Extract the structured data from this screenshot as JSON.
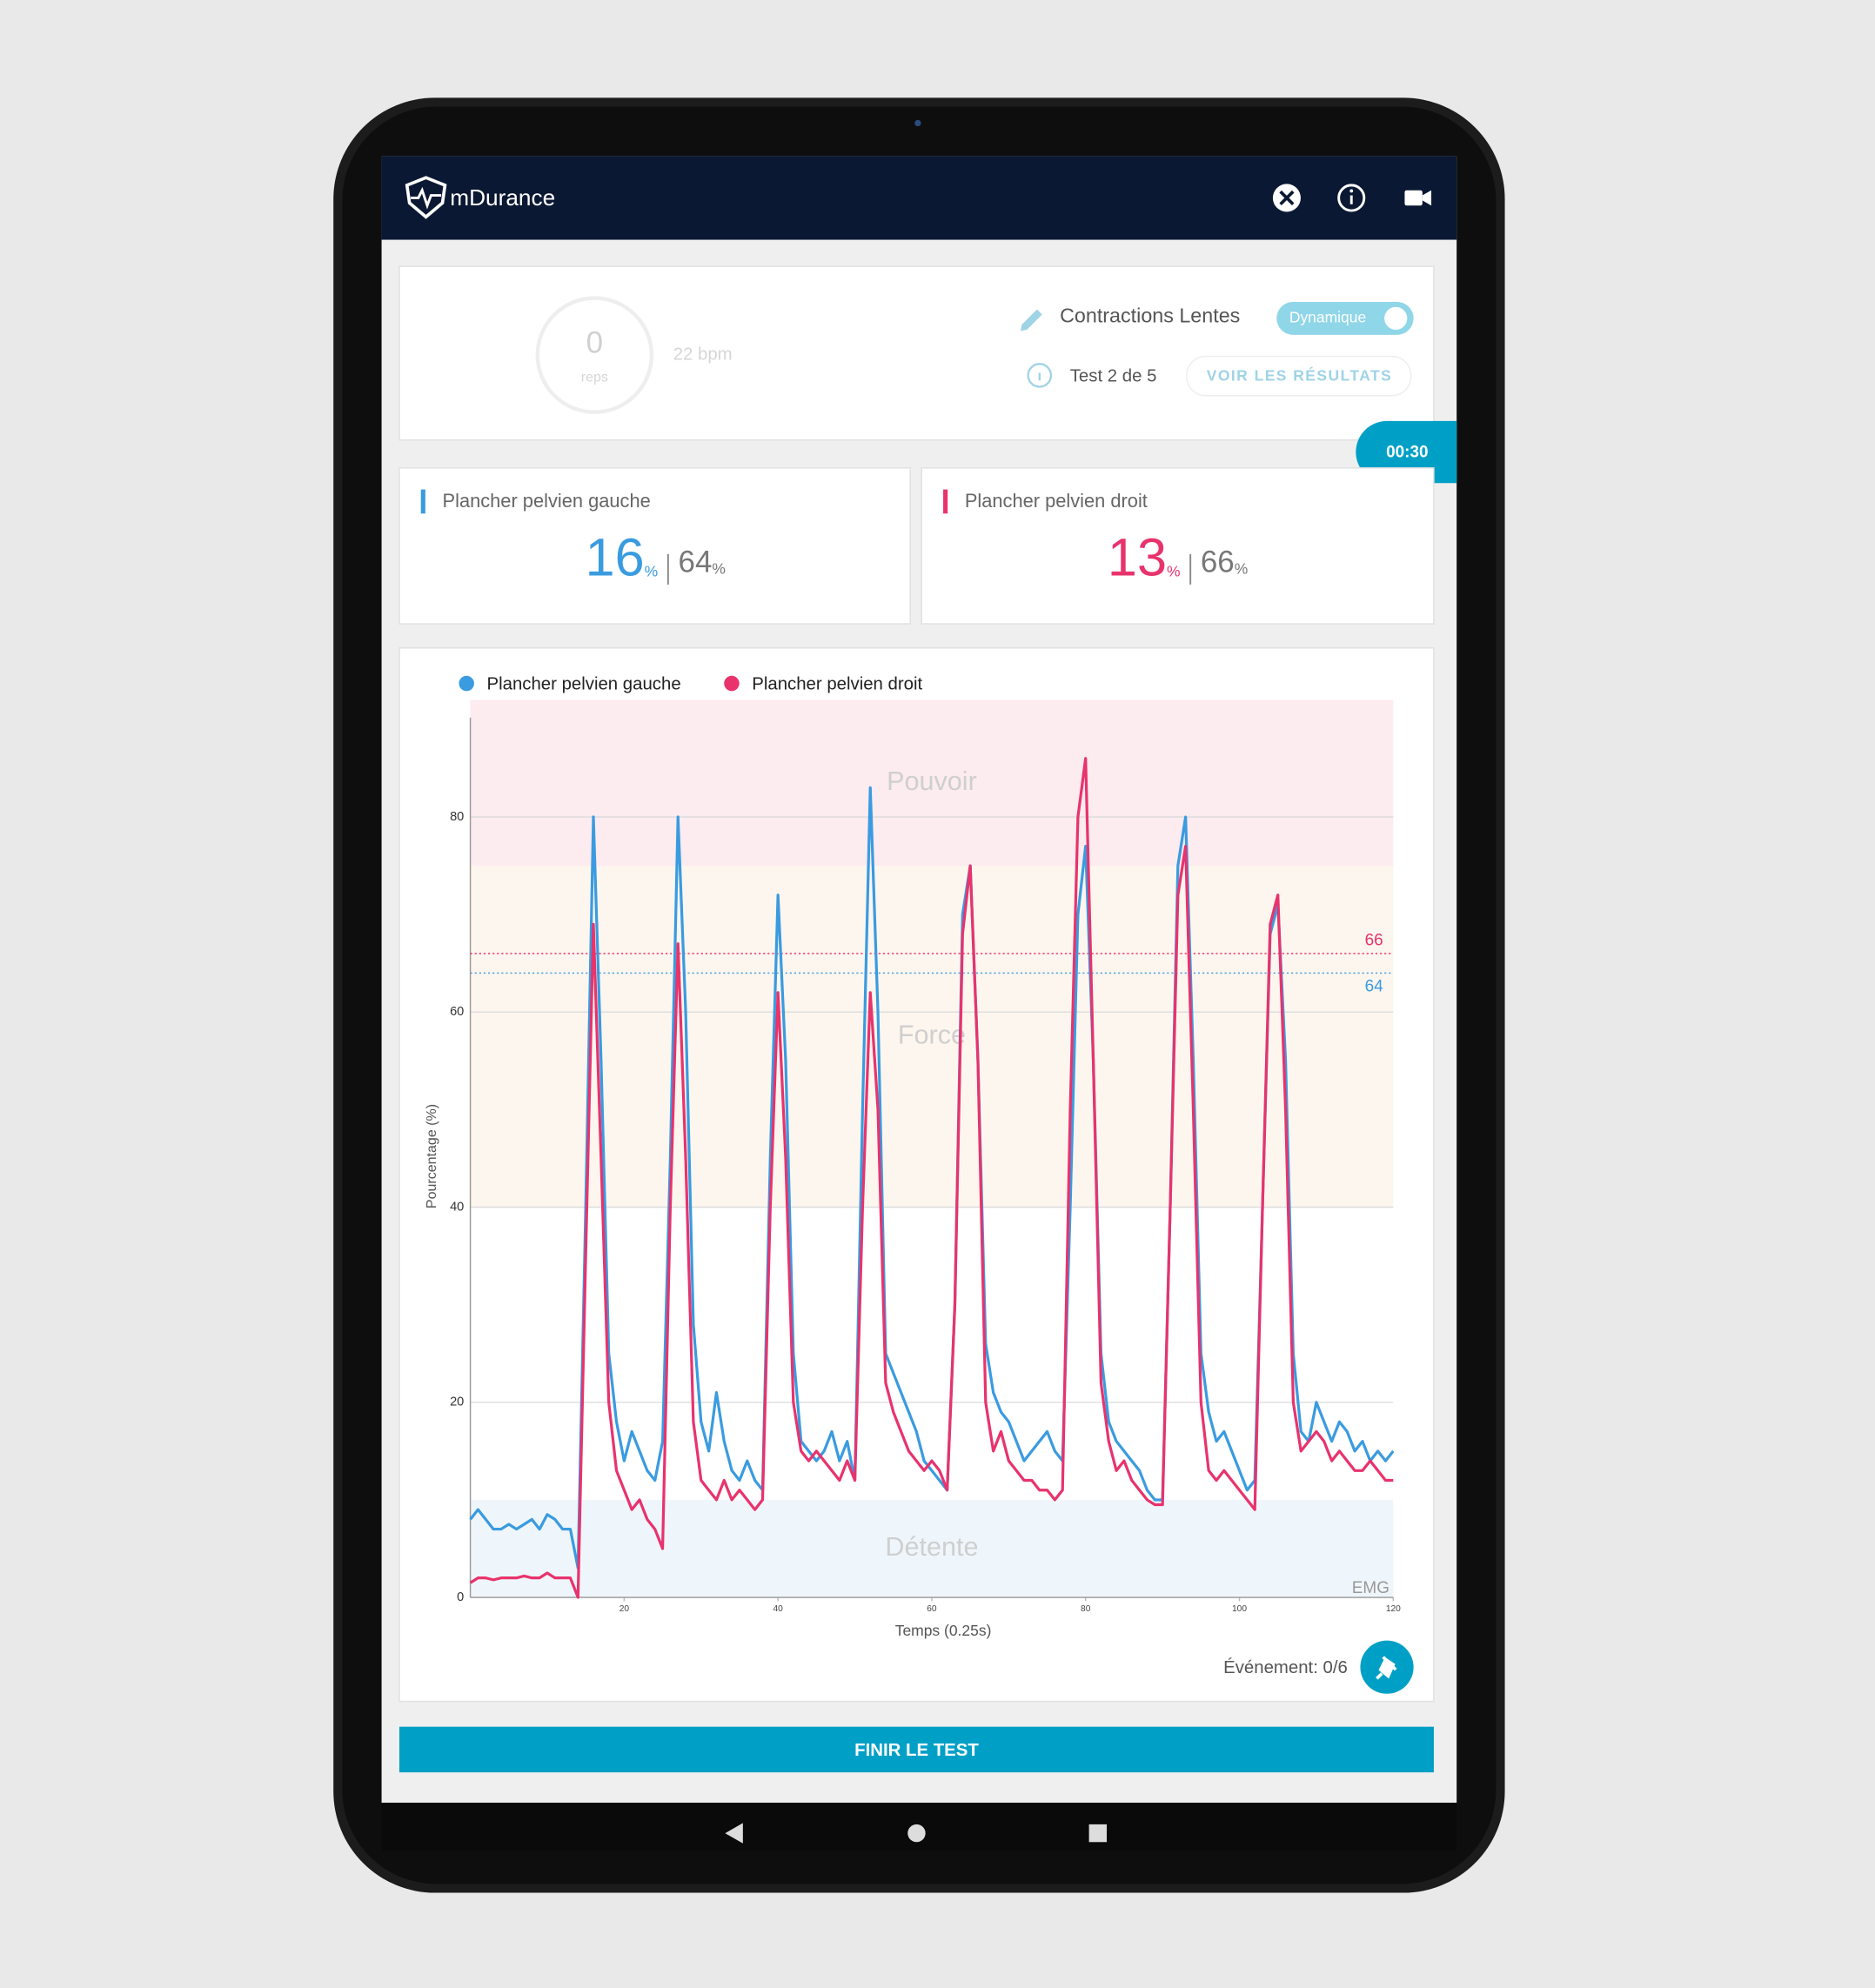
{
  "header": {
    "app_name": "mDurance"
  },
  "session": {
    "reps": 0,
    "reps_label": "reps",
    "rate": "22 bpm",
    "exercise": "Contractions Lentes",
    "mode": "Dynamique",
    "test": "Test 2 de 5",
    "results_button": "VOIR LES RÉSULTATS",
    "timer": "00:30"
  },
  "cards": [
    {
      "title": "Plancher pelvien gauche",
      "current": 16,
      "max": 64,
      "unit": "%",
      "color": "#3a9be0"
    },
    {
      "title": "Plancher pelvien droit",
      "current": 13,
      "max": 66,
      "unit": "%",
      "color": "#e8336d"
    }
  ],
  "chart_data": {
    "type": "line",
    "y_label": "Pourcentage (%)",
    "x_label": "Temps (0.25s)",
    "corner_label": "EMG",
    "legend": "top-left",
    "grid": true,
    "xlim": [
      0,
      120
    ],
    "xticks": [
      20,
      40,
      60,
      80,
      100,
      120
    ],
    "ylim": [
      0,
      92
    ],
    "yticks": [
      0,
      20,
      40,
      60,
      80
    ],
    "zones": [
      {
        "name": "Pouvoir",
        "from": 75,
        "to": 92,
        "color": "#fcebef"
      },
      {
        "name": "Force",
        "from": 40,
        "to": 75,
        "color": "#fdf6ee"
      },
      {
        "name": "Détente",
        "from": 0,
        "to": 10,
        "color": "#eff6fb"
      }
    ],
    "thresholds": [
      {
        "value": 66,
        "color": "#e8336d"
      },
      {
        "value": 64,
        "color": "#3a9be0"
      }
    ],
    "x": [
      0,
      1,
      2,
      3,
      4,
      5,
      6,
      7,
      8,
      9,
      10,
      11,
      12,
      13,
      14,
      15,
      16,
      17,
      18,
      19,
      20,
      21,
      22,
      23,
      24,
      25,
      26,
      27,
      28,
      29,
      30,
      31,
      32,
      33,
      34,
      35,
      36,
      37,
      38,
      39,
      40,
      41,
      42,
      43,
      44,
      45,
      46,
      47,
      48,
      49,
      50,
      51,
      52,
      53,
      54,
      55,
      56,
      57,
      58,
      59,
      60,
      61,
      62,
      63,
      64,
      65,
      66,
      67,
      68,
      69,
      70,
      71,
      72,
      73,
      74,
      75,
      76,
      77,
      78,
      79,
      80,
      81,
      82,
      83,
      84,
      85,
      86,
      87,
      88,
      89,
      90,
      91,
      92,
      93,
      94,
      95,
      96,
      97,
      98,
      99,
      100,
      101,
      102,
      103,
      104,
      105,
      106,
      107,
      108,
      109,
      110,
      111,
      112,
      113,
      114,
      115,
      116,
      117,
      118,
      119,
      120
    ],
    "series": [
      {
        "name": "Plancher pelvien gauche",
        "color": "#3a9be0",
        "values": [
          8,
          9,
          8,
          7,
          7,
          7.5,
          7,
          7.5,
          8,
          7,
          8.5,
          8,
          7,
          7,
          3,
          40,
          80,
          55,
          25,
          18,
          14,
          17,
          15,
          13,
          12,
          16,
          45,
          80,
          60,
          28,
          18,
          15,
          21,
          16,
          13,
          12,
          14,
          12,
          11,
          45,
          72,
          55,
          25,
          16,
          15,
          14,
          15,
          17,
          14,
          16,
          12,
          50,
          83,
          60,
          25,
          23,
          21,
          19,
          17,
          14,
          13,
          12,
          11,
          30,
          70,
          75,
          55,
          26,
          21,
          19,
          18,
          16,
          14,
          15,
          16,
          17,
          15,
          14,
          40,
          70,
          77,
          55,
          25,
          18,
          16,
          15,
          14,
          13,
          11,
          10,
          10,
          40,
          75,
          80,
          55,
          25,
          19,
          16,
          17,
          15,
          13,
          11,
          12,
          40,
          68,
          71,
          55,
          25,
          17,
          16,
          20,
          18,
          16,
          18,
          17,
          15,
          16,
          14,
          15,
          14,
          15
        ]
      },
      {
        "name": "Plancher pelvien droit",
        "color": "#e8336d",
        "values": [
          1.5,
          2,
          2,
          1.8,
          2,
          2,
          2,
          2.2,
          2,
          2,
          2.5,
          2,
          2,
          2,
          0,
          35,
          69,
          45,
          20,
          13,
          11,
          9,
          10,
          8,
          7,
          5,
          40,
          67,
          45,
          18,
          12,
          11,
          10,
          12,
          10,
          11,
          10,
          9,
          10,
          40,
          62,
          45,
          20,
          15,
          14,
          15,
          14,
          13,
          12,
          14,
          12,
          40,
          62,
          50,
          22,
          19,
          17,
          15,
          14,
          13,
          14,
          13,
          11,
          30,
          68,
          75,
          55,
          20,
          15,
          17,
          14,
          13,
          12,
          12,
          11,
          11,
          10,
          11,
          50,
          80,
          86,
          55,
          22,
          16,
          13,
          14,
          12,
          11,
          10,
          9.5,
          9.5,
          40,
          72,
          77,
          50,
          20,
          13,
          12,
          13,
          12,
          11,
          10,
          9,
          40,
          69,
          72,
          50,
          20,
          15,
          16,
          17,
          16,
          14,
          15,
          14,
          13,
          13,
          14,
          13,
          12,
          12
        ]
      }
    ]
  },
  "footer": {
    "events": "Événement: 0/6",
    "finish_button": "FINIR LE TEST"
  }
}
